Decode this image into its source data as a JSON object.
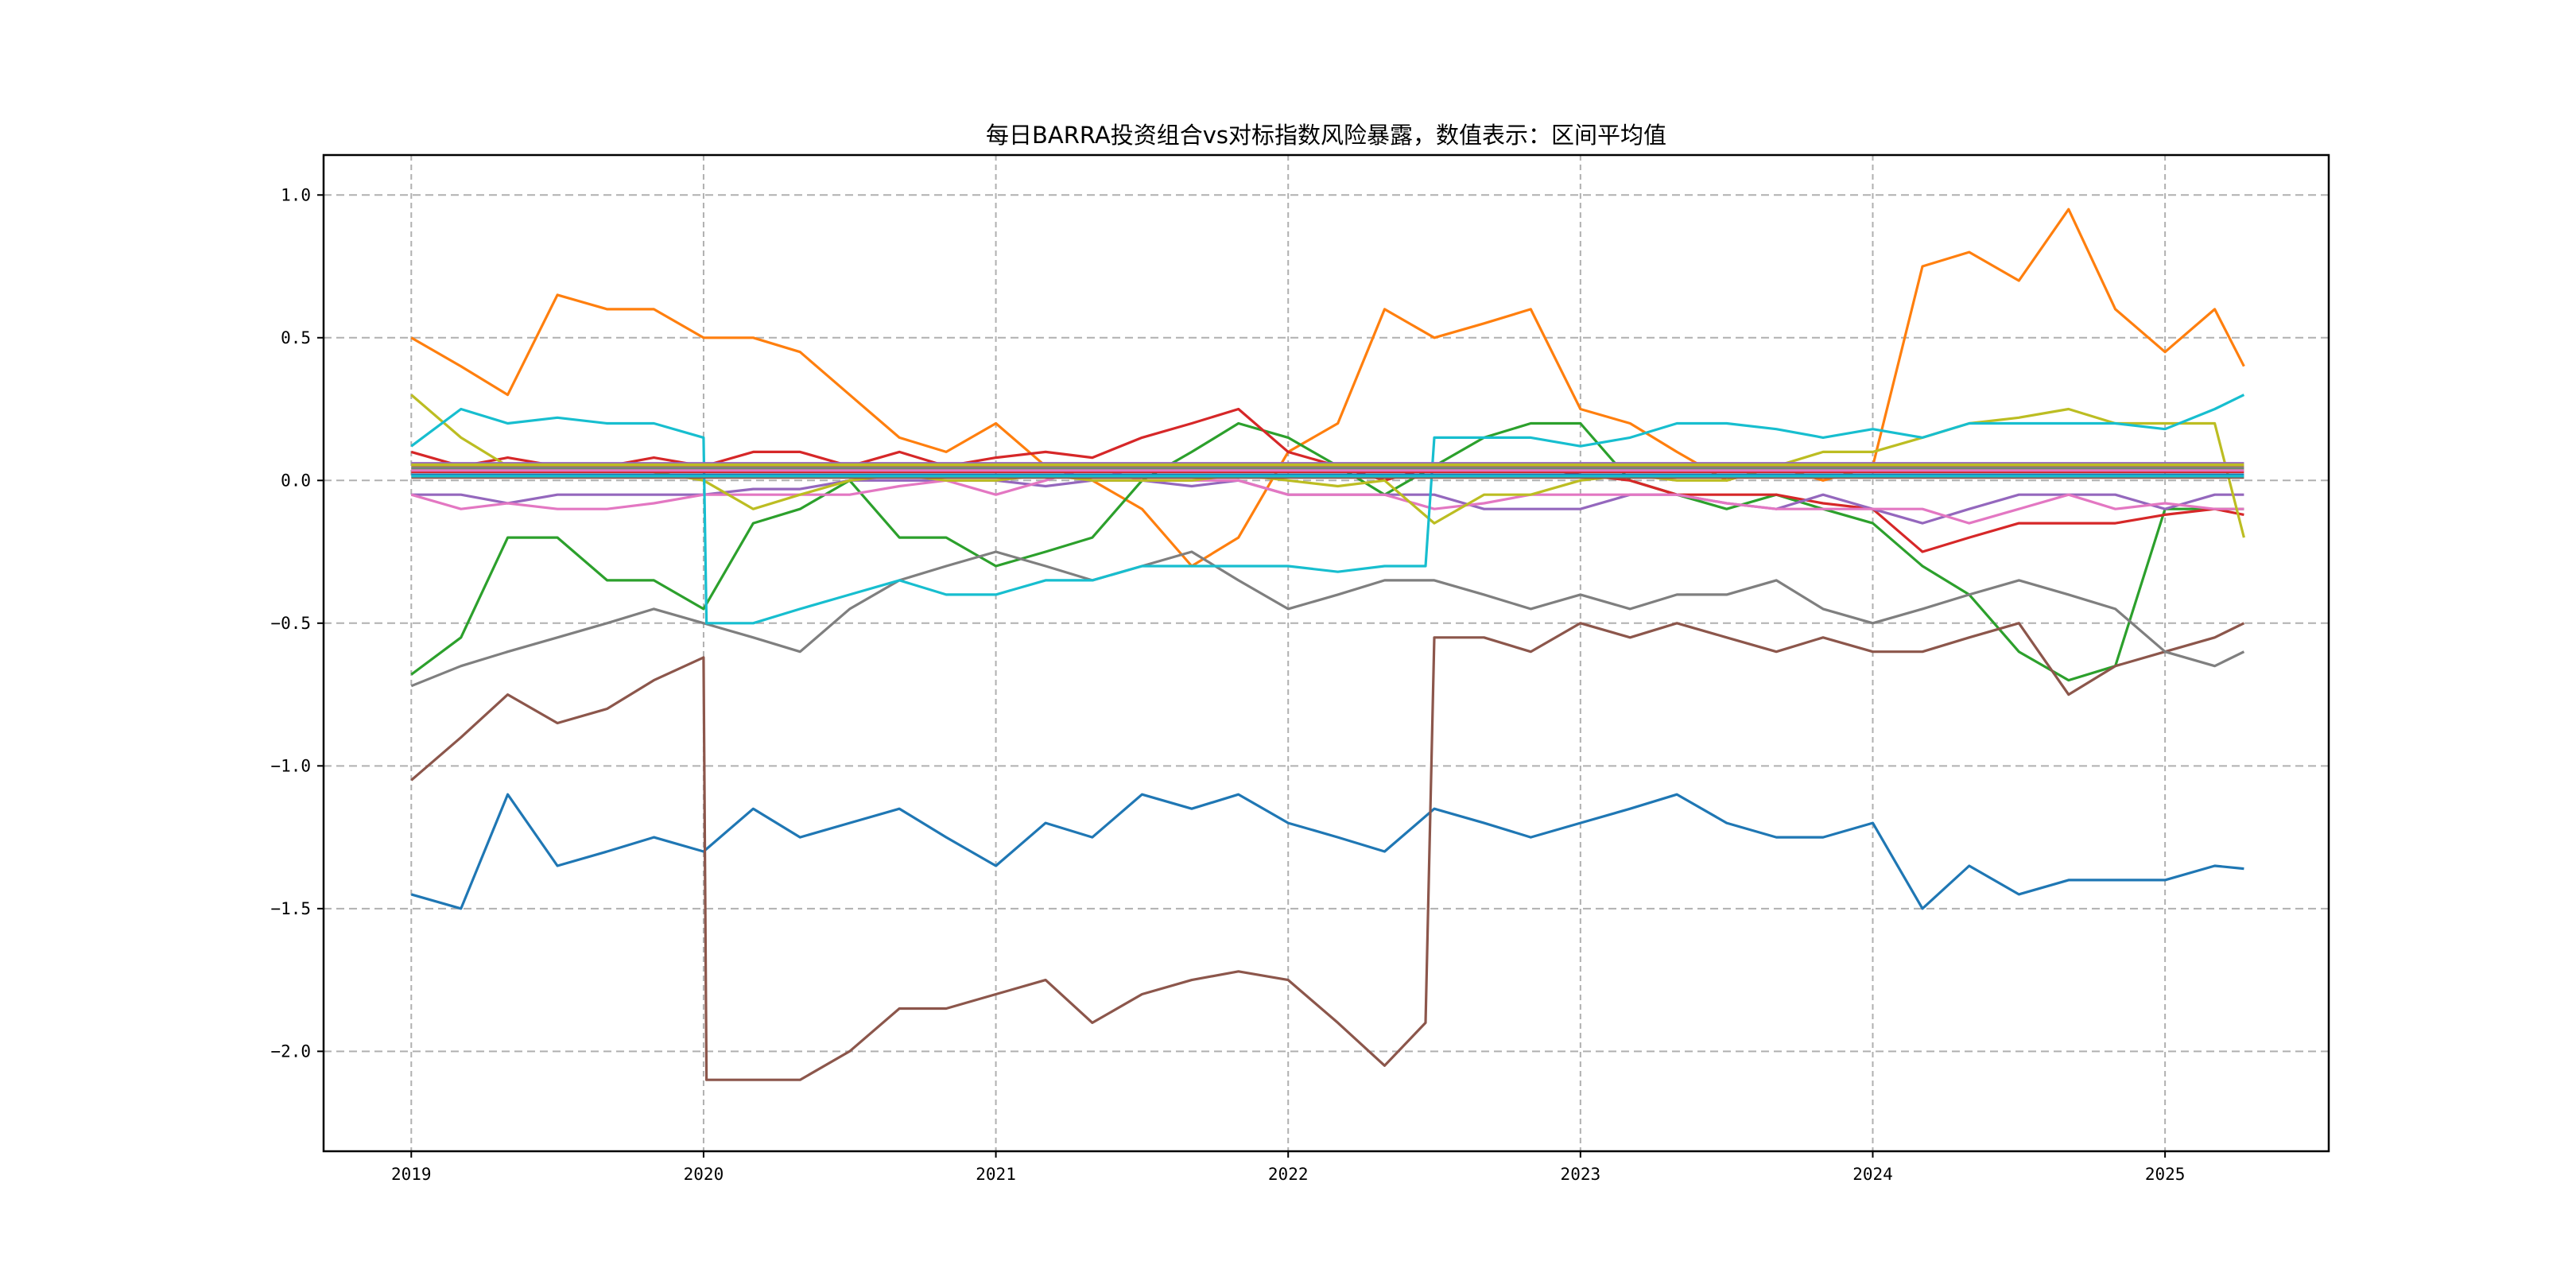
{
  "chart_data": {
    "type": "line",
    "title": "每日BARRA投资组合vs对标指数风险暴露，数值表示：区间平均值",
    "xlabel": "",
    "ylabel": "",
    "xlim": [
      2018.7,
      2025.56
    ],
    "ylim": [
      -2.35,
      1.14
    ],
    "grid": true,
    "legend": "none",
    "x_ticks": [
      2019,
      2020,
      2021,
      2022,
      2023,
      2024,
      2025
    ],
    "x_tick_labels": [
      "2019",
      "2020",
      "2021",
      "2022",
      "2023",
      "2024",
      "2025"
    ],
    "y_ticks": [
      1.0,
      0.5,
      0.0,
      -0.5,
      -1.0,
      -1.5,
      -2.0
    ],
    "y_tick_labels": [
      "1.0",
      "0.5",
      "0.0",
      "−0.5",
      "−1.0",
      "−1.5",
      "−2.0"
    ],
    "x": [
      2019.0,
      2019.17,
      2019.33,
      2019.5,
      2019.67,
      2019.83,
      2020.0,
      2020.17,
      2020.33,
      2020.5,
      2020.67,
      2020.83,
      2021.0,
      2021.17,
      2021.33,
      2021.5,
      2021.67,
      2021.83,
      2022.0,
      2022.17,
      2022.33,
      2022.5,
      2022.67,
      2022.83,
      2023.0,
      2023.17,
      2023.33,
      2023.5,
      2023.67,
      2023.83,
      2024.0,
      2024.17,
      2024.33,
      2024.5,
      2024.67,
      2024.83,
      2025.0,
      2025.17,
      2025.27
    ],
    "series": [
      {
        "name": "series-01",
        "color": "#1f77b4",
        "values": [
          -1.45,
          -1.5,
          -1.1,
          -1.35,
          -1.3,
          -1.25,
          -1.3,
          -1.15,
          -1.25,
          -1.2,
          -1.15,
          -1.25,
          -1.35,
          -1.2,
          -1.25,
          -1.1,
          -1.15,
          -1.1,
          -1.2,
          -1.25,
          -1.3,
          -1.15,
          -1.2,
          -1.25,
          -1.2,
          -1.15,
          -1.1,
          -1.2,
          -1.25,
          -1.25,
          -1.2,
          -1.5,
          -1.35,
          -1.45,
          -1.4,
          -1.4,
          -1.4,
          -1.35,
          -1.36
        ]
      },
      {
        "name": "series-02",
        "color": "#ff7f0e",
        "values": [
          0.5,
          0.4,
          0.3,
          0.65,
          0.6,
          0.6,
          0.5,
          0.5,
          0.45,
          0.3,
          0.15,
          0.1,
          0.2,
          0.05,
          0.0,
          -0.1,
          -0.3,
          -0.2,
          0.1,
          0.2,
          0.6,
          0.5,
          0.55,
          0.6,
          0.25,
          0.2,
          0.1,
          0.0,
          0.05,
          0.0,
          0.05,
          0.75,
          0.8,
          0.7,
          0.95,
          0.6,
          0.45,
          0.6,
          0.4
        ]
      },
      {
        "name": "series-03",
        "color": "#2ca02c",
        "values": [
          -0.68,
          -0.55,
          -0.2,
          -0.2,
          -0.35,
          -0.35,
          -0.45,
          -0.15,
          -0.1,
          0.0,
          -0.2,
          -0.2,
          -0.3,
          -0.25,
          -0.2,
          0.0,
          0.1,
          0.2,
          0.15,
          0.05,
          -0.05,
          0.05,
          0.15,
          0.2,
          0.2,
          0.0,
          -0.05,
          -0.1,
          -0.05,
          -0.1,
          -0.15,
          -0.3,
          -0.4,
          -0.6,
          -0.7,
          -0.65,
          -0.1,
          -0.1,
          -0.1
        ]
      },
      {
        "name": "series-04",
        "color": "#d62728",
        "values": [
          0.1,
          0.05,
          0.08,
          0.05,
          0.05,
          0.08,
          0.05,
          0.1,
          0.1,
          0.05,
          0.1,
          0.05,
          0.08,
          0.1,
          0.08,
          0.15,
          0.2,
          0.25,
          0.1,
          0.05,
          0.0,
          0.05,
          0.05,
          0.05,
          0.02,
          0.0,
          -0.05,
          -0.05,
          -0.05,
          -0.08,
          -0.1,
          -0.25,
          -0.2,
          -0.15,
          -0.15,
          -0.15,
          -0.12,
          -0.1,
          -0.12
        ]
      },
      {
        "name": "series-05",
        "color": "#9467bd",
        "values": [
          -0.05,
          -0.05,
          -0.08,
          -0.05,
          -0.05,
          -0.05,
          -0.05,
          -0.03,
          -0.03,
          0.0,
          0.0,
          0.0,
          0.0,
          -0.02,
          0.0,
          0.0,
          -0.02,
          0.0,
          -0.05,
          -0.05,
          -0.05,
          -0.05,
          -0.1,
          -0.1,
          -0.1,
          -0.05,
          -0.05,
          -0.08,
          -0.1,
          -0.05,
          -0.1,
          -0.15,
          -0.1,
          -0.05,
          -0.05,
          -0.05,
          -0.1,
          -0.05,
          -0.05
        ]
      },
      {
        "name": "series-06",
        "color": "#8c564b",
        "x": [
          2019.0,
          2019.17,
          2019.33,
          2019.5,
          2019.67,
          2019.83,
          2020.0,
          2020.01,
          2020.17,
          2020.33,
          2020.5,
          2020.67,
          2020.83,
          2021.0,
          2021.17,
          2021.33,
          2021.5,
          2021.67,
          2021.83,
          2022.0,
          2022.17,
          2022.33,
          2022.47,
          2022.5,
          2022.67,
          2022.83,
          2023.0,
          2023.17,
          2023.33,
          2023.5,
          2023.67,
          2023.83,
          2024.0,
          2024.17,
          2024.33,
          2024.5,
          2024.67,
          2024.83,
          2025.0,
          2025.17,
          2025.27
        ],
        "values": [
          -1.05,
          -0.9,
          -0.75,
          -0.85,
          -0.8,
          -0.7,
          -0.62,
          -2.1,
          -2.1,
          -2.1,
          -2.0,
          -1.85,
          -1.85,
          -1.8,
          -1.75,
          -1.9,
          -1.8,
          -1.75,
          -1.72,
          -1.75,
          -1.9,
          -2.05,
          -1.9,
          -0.55,
          -0.55,
          -0.6,
          -0.5,
          -0.55,
          -0.5,
          -0.55,
          -0.6,
          -0.55,
          -0.6,
          -0.6,
          -0.55,
          -0.5,
          -0.75,
          -0.65,
          -0.6,
          -0.55,
          -0.5
        ]
      },
      {
        "name": "series-07",
        "color": "#e377c2",
        "values": [
          -0.05,
          -0.1,
          -0.08,
          -0.1,
          -0.1,
          -0.08,
          -0.05,
          -0.05,
          -0.05,
          -0.05,
          -0.02,
          0.0,
          -0.05,
          0.0,
          0.05,
          0.0,
          0.0,
          0.0,
          -0.05,
          -0.05,
          -0.05,
          -0.1,
          -0.08,
          -0.05,
          -0.05,
          -0.05,
          -0.05,
          -0.08,
          -0.1,
          -0.1,
          -0.1,
          -0.1,
          -0.15,
          -0.1,
          -0.05,
          -0.1,
          -0.08,
          -0.1,
          -0.1
        ]
      },
      {
        "name": "series-08",
        "color": "#7f7f7f",
        "values": [
          -0.72,
          -0.65,
          -0.6,
          -0.55,
          -0.5,
          -0.45,
          -0.5,
          -0.55,
          -0.6,
          -0.45,
          -0.35,
          -0.3,
          -0.25,
          -0.3,
          -0.35,
          -0.3,
          -0.25,
          -0.35,
          -0.45,
          -0.4,
          -0.35,
          -0.35,
          -0.4,
          -0.45,
          -0.4,
          -0.45,
          -0.4,
          -0.4,
          -0.35,
          -0.45,
          -0.5,
          -0.45,
          -0.4,
          -0.35,
          -0.4,
          -0.45,
          -0.6,
          -0.65,
          -0.6
        ]
      },
      {
        "name": "series-09",
        "color": "#bcbd22",
        "values": [
          0.3,
          0.15,
          0.05,
          0.05,
          0.05,
          0.03,
          0.0,
          -0.1,
          -0.05,
          0.0,
          0.02,
          0.0,
          0.0,
          0.02,
          0.0,
          0.0,
          0.0,
          0.02,
          0.0,
          -0.02,
          0.0,
          -0.15,
          -0.05,
          -0.05,
          0.0,
          0.02,
          0.0,
          0.0,
          0.05,
          0.1,
          0.1,
          0.15,
          0.2,
          0.22,
          0.25,
          0.2,
          0.2,
          0.2,
          -0.2
        ]
      },
      {
        "name": "series-10",
        "color": "#17becf",
        "x": [
          2019.0,
          2019.17,
          2019.33,
          2019.5,
          2019.67,
          2019.83,
          2020.0,
          2020.01,
          2020.17,
          2020.33,
          2020.5,
          2020.67,
          2020.83,
          2021.0,
          2021.17,
          2021.33,
          2021.5,
          2021.67,
          2021.83,
          2022.0,
          2022.17,
          2022.33,
          2022.47,
          2022.5,
          2022.67,
          2022.83,
          2023.0,
          2023.17,
          2023.33,
          2023.5,
          2023.67,
          2023.83,
          2024.0,
          2024.17,
          2024.33,
          2024.5,
          2024.67,
          2024.83,
          2025.0,
          2025.17,
          2025.27
        ],
        "values": [
          0.12,
          0.25,
          0.2,
          0.22,
          0.2,
          0.2,
          0.15,
          -0.5,
          -0.5,
          -0.45,
          -0.4,
          -0.35,
          -0.4,
          -0.4,
          -0.35,
          -0.35,
          -0.3,
          -0.3,
          -0.3,
          -0.3,
          -0.32,
          -0.3,
          -0.3,
          0.15,
          0.15,
          0.15,
          0.12,
          0.15,
          0.2,
          0.2,
          0.18,
          0.15,
          0.18,
          0.15,
          0.2,
          0.2,
          0.2,
          0.2,
          0.18,
          0.25,
          0.3
        ]
      },
      {
        "name": "series-11",
        "color": "#1f77b4",
        "x": [
          2019.0,
          2025.27
        ],
        "values": [
          0.02,
          0.02
        ]
      },
      {
        "name": "series-12",
        "color": "#ff7f0e",
        "x": [
          2019.0,
          2025.27
        ],
        "values": [
          0.05,
          0.05
        ]
      },
      {
        "name": "series-13",
        "color": "#2ca02c",
        "x": [
          2019.0,
          2025.27
        ],
        "values": [
          0.04,
          0.04
        ]
      },
      {
        "name": "series-14",
        "color": "#d62728",
        "x": [
          2019.0,
          2025.27
        ],
        "values": [
          0.03,
          0.03
        ]
      },
      {
        "name": "series-15",
        "color": "#9467bd",
        "x": [
          2019.0,
          2025.27
        ],
        "values": [
          0.06,
          0.06
        ]
      },
      {
        "name": "series-16",
        "color": "#8c564b",
        "x": [
          2019.0,
          2025.27
        ],
        "values": [
          0.01,
          0.01
        ]
      },
      {
        "name": "series-17",
        "color": "#e377c2",
        "x": [
          2019.0,
          2025.27
        ],
        "values": [
          0.035,
          0.035
        ]
      },
      {
        "name": "series-18",
        "color": "#7f7f7f",
        "x": [
          2019.0,
          2025.27
        ],
        "values": [
          0.045,
          0.045
        ]
      },
      {
        "name": "series-19",
        "color": "#bcbd22",
        "x": [
          2019.0,
          2025.27
        ],
        "values": [
          0.055,
          0.055
        ]
      },
      {
        "name": "series-20",
        "color": "#17becf",
        "x": [
          2019.0,
          2025.27
        ],
        "values": [
          0.015,
          0.015
        ]
      }
    ]
  }
}
